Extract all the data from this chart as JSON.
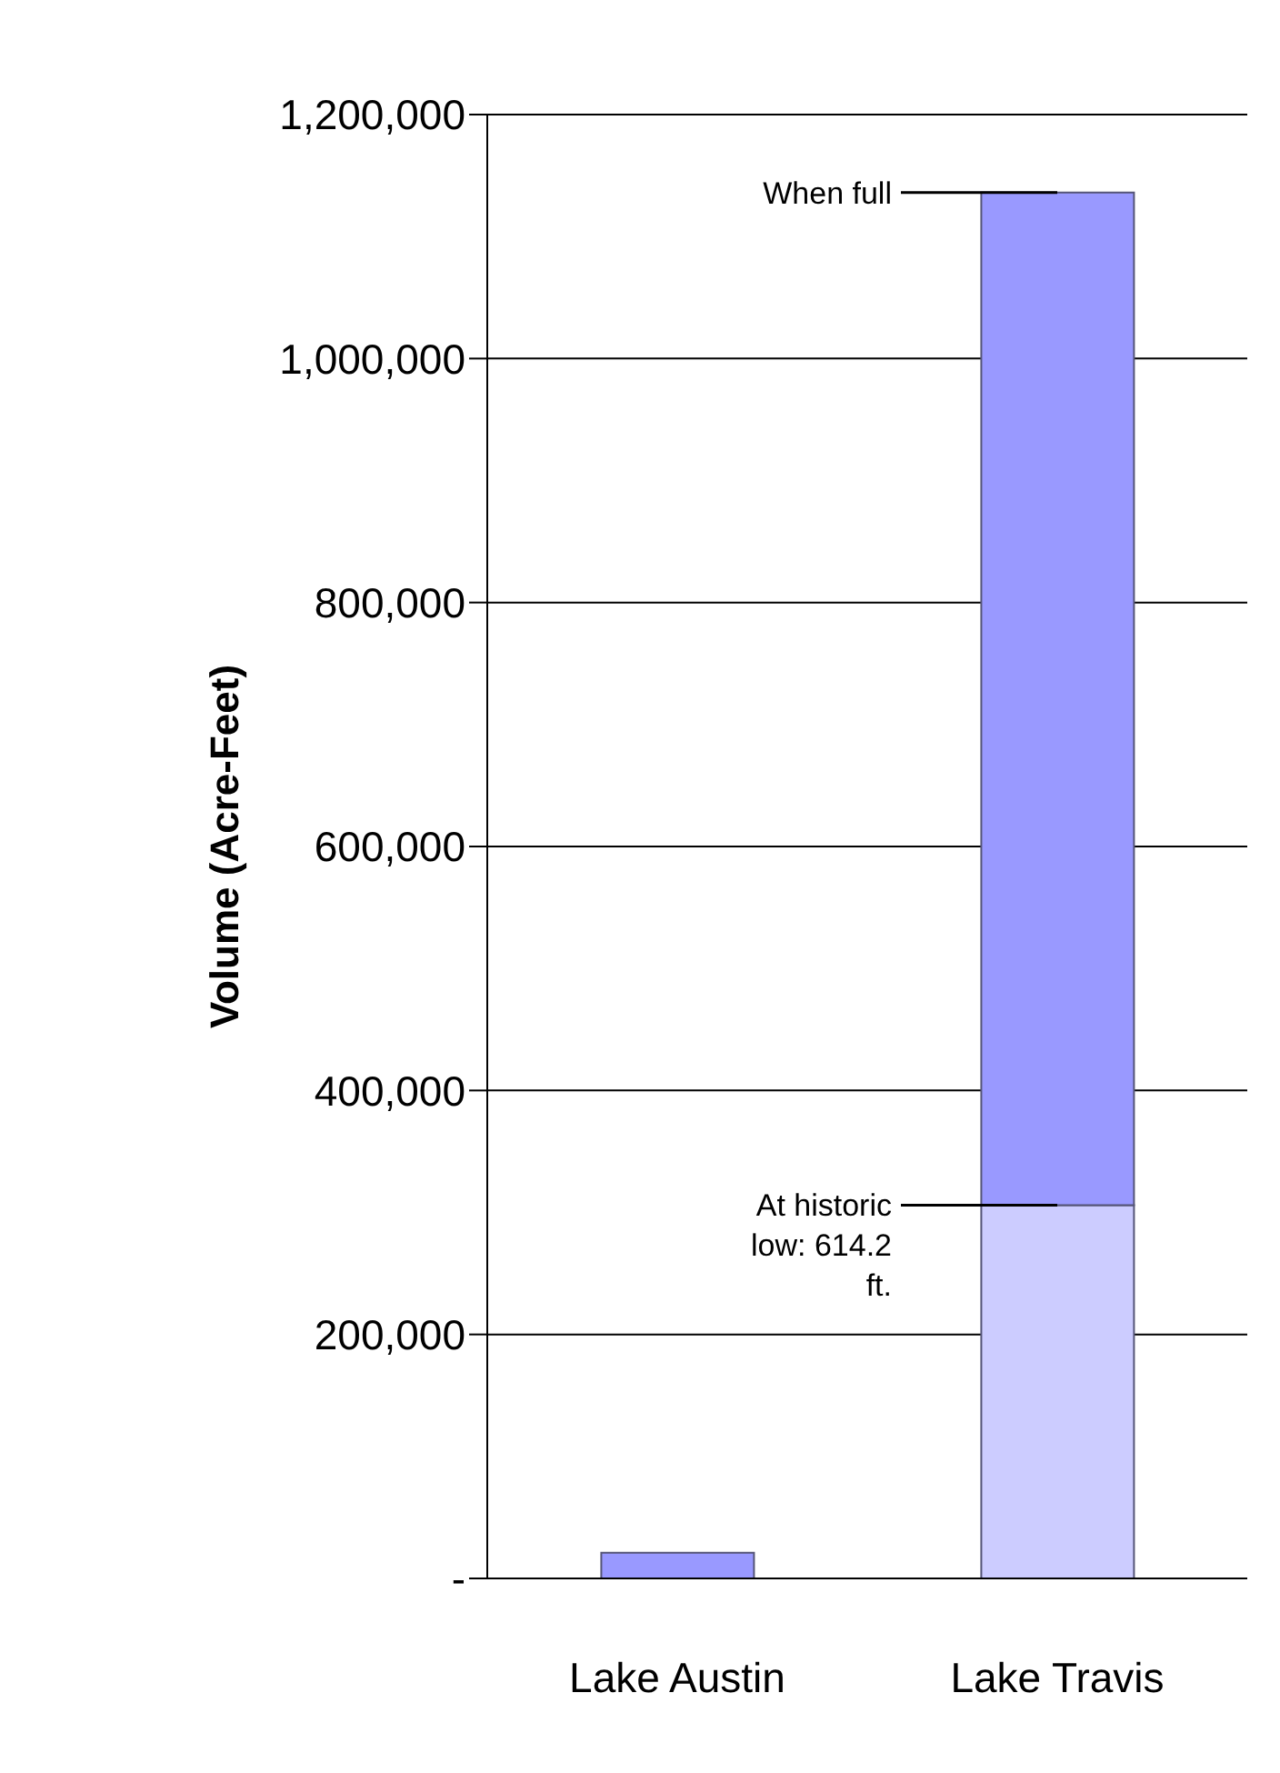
{
  "chart_data": {
    "type": "bar",
    "ylabel": "Volume (Acre-Feet)",
    "categories": [
      "Lake Austin",
      "Lake Travis"
    ],
    "stacked": true,
    "series": [
      {
        "color": "#ccccff",
        "values": [
          null,
          306000
        ]
      },
      {
        "color": "#9999ff",
        "values": [
          21000,
          830000
        ]
      }
    ],
    "ylim": [
      0,
      1200000
    ],
    "yticks": [
      {
        "value": 0,
        "label": "-"
      },
      {
        "value": 200000,
        "label": "200,000"
      },
      {
        "value": 400000,
        "label": "400,000"
      },
      {
        "value": 600000,
        "label": "600,000"
      },
      {
        "value": 800000,
        "label": "800,000"
      },
      {
        "value": 1000000,
        "label": "1,000,000"
      },
      {
        "value": 1200000,
        "label": "1,200,000"
      }
    ],
    "grid": "y",
    "annotations": [
      {
        "text": "When full",
        "x": "Lake Travis",
        "y": 1136000
      },
      {
        "text": "At historic low:  614.2 ft.",
        "x": "Lake Travis",
        "y": 306000
      }
    ]
  }
}
